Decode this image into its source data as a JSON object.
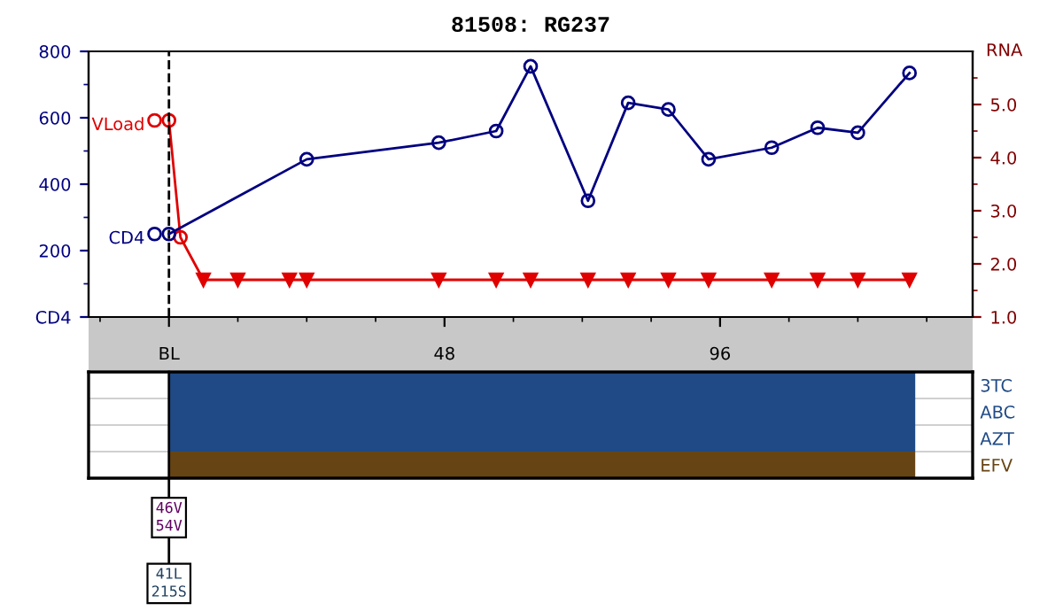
{
  "chart_data": [
    {
      "type": "line",
      "title": "81508: RG237",
      "y2label": "RNA",
      "xlim": [
        -14,
        140
      ],
      "xticks": [
        {
          "value": -12,
          "label": null
        },
        {
          "value": 0,
          "label": "BL"
        },
        {
          "value": 12,
          "label": null
        },
        {
          "value": 24,
          "label": null
        },
        {
          "value": 36,
          "label": null
        },
        48,
        {
          "value": 60,
          "label": null
        },
        {
          "value": 72,
          "label": null
        },
        {
          "value": 84,
          "label": null
        },
        96,
        {
          "value": 108,
          "label": null
        },
        {
          "value": 120,
          "label": null
        },
        {
          "value": 132,
          "label": null
        }
      ],
      "ylim": [
        0,
        800
      ],
      "yticks": [
        {
          "value": 0,
          "label": "CD4"
        },
        {
          "value": 100,
          "label": null
        },
        200,
        {
          "value": 300,
          "label": null
        },
        400,
        {
          "value": 500,
          "label": null
        },
        600,
        {
          "value": 700,
          "label": null
        },
        800
      ],
      "y2lim": [
        1,
        6
      ],
      "y2ticks": [
        {
          "value": 1,
          "label": "1.0"
        },
        {
          "value": 1.5,
          "label": null
        },
        {
          "value": 2,
          "label": "2.0"
        },
        {
          "value": 2.5,
          "label": null
        },
        {
          "value": 3,
          "label": "3.0"
        },
        {
          "value": 3.5,
          "label": null
        },
        {
          "value": 4,
          "label": "4.0"
        },
        {
          "value": 4.5,
          "label": null
        },
        {
          "value": 5,
          "label": "5.0"
        },
        {
          "value": 5.5,
          "label": null
        }
      ],
      "grid": false,
      "legend": "left",
      "ref_lines": [
        {
          "axis": "x",
          "value": 0,
          "color": "#000000",
          "line_style": "dashed"
        }
      ],
      "series": [
        {
          "name": "CD4",
          "type": "line",
          "color": "#000080",
          "marker": "circle",
          "x": [
            0,
            24,
            47,
            57,
            63,
            73,
            80,
            87,
            94,
            105,
            113,
            120,
            129
          ],
          "values": [
            250,
            475,
            525,
            560,
            755,
            350,
            645,
            625,
            475,
            510,
            570,
            555,
            735
          ]
        },
        {
          "name": "VLoad",
          "type": "line",
          "axis": "y2",
          "color": "#e00000",
          "marker": "none",
          "x": [
            0,
            2,
            6,
            12,
            21,
            24,
            47,
            57,
            63,
            73,
            80,
            87,
            94,
            105,
            113,
            120,
            129
          ],
          "values": [
            4.7,
            2.5,
            1.7,
            1.7,
            1.7,
            1.7,
            1.7,
            1.7,
            1.7,
            1.7,
            1.7,
            1.7,
            1.7,
            1.7,
            1.7,
            1.7,
            1.7
          ]
        },
        {
          "type": "scatter",
          "axis": "y2",
          "color": "#e00000",
          "marker": "circle",
          "x": [
            0,
            2
          ],
          "values": [
            4.7,
            2.5
          ]
        },
        {
          "type": "scatter",
          "axis": "y2",
          "color": "#e00000",
          "marker": "triangle",
          "x": [
            6,
            12,
            21,
            24,
            47,
            57,
            63,
            73,
            80,
            87,
            94,
            105,
            113,
            120,
            129
          ],
          "values": [
            1.7,
            1.7,
            1.7,
            1.7,
            1.7,
            1.7,
            1.7,
            1.7,
            1.7,
            1.7,
            1.7,
            1.7,
            1.7,
            1.7,
            1.7
          ]
        }
      ]
    },
    {
      "type": "bar",
      "orientation": "horizontal",
      "tick_labels": "y",
      "categories": [
        "3TC",
        "ABC",
        "AZT",
        "EFV"
      ],
      "xlim": [
        -14,
        140
      ],
      "values": [
        130,
        130,
        130,
        130
      ],
      "colors": [
        "#1f4a85",
        "#1f4a85",
        "#1f4a85",
        "#674414"
      ],
      "ref_lines": [
        {
          "axis": "x",
          "value": 0,
          "color": "#000000",
          "line_style": "solid"
        }
      ],
      "annotations": [
        "46V\n54V",
        "41L\n215S"
      ]
    }
  ]
}
